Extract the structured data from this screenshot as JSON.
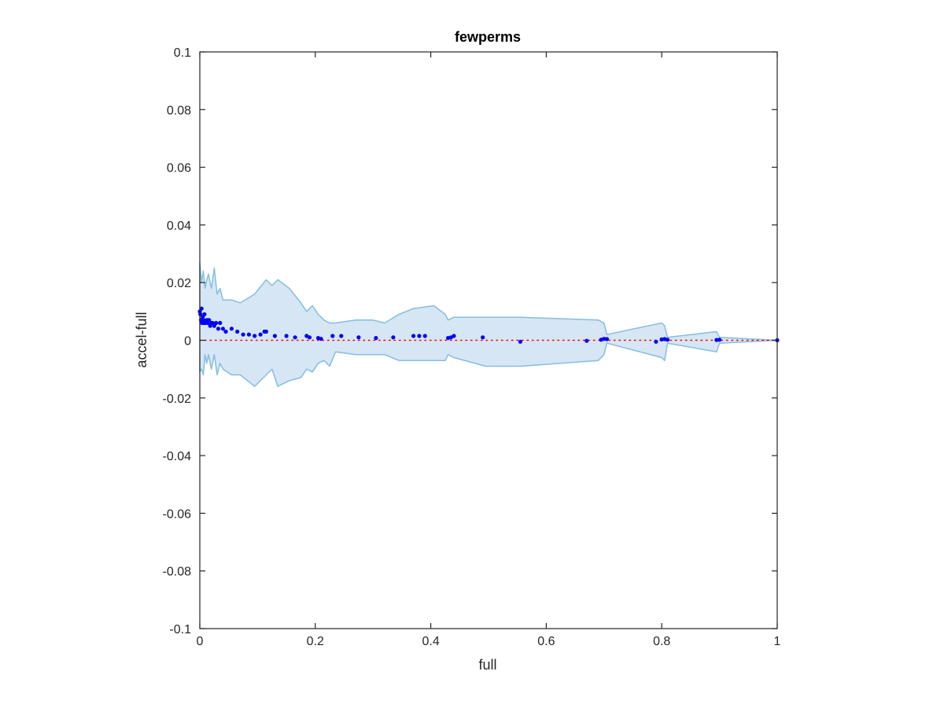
{
  "chart_data": {
    "type": "scatter",
    "title": "fewperms",
    "xlabel": "full",
    "ylabel": "accel-full",
    "xlim": [
      0,
      1
    ],
    "ylim": [
      -0.1,
      0.1
    ],
    "xticks": [
      0,
      0.2,
      0.4,
      0.6,
      0.8,
      1
    ],
    "xtick_labels": [
      "0",
      "0.2",
      "0.4",
      "0.6",
      "0.8",
      "1"
    ],
    "yticks": [
      -0.1,
      -0.08,
      -0.06,
      -0.04,
      -0.02,
      0,
      0.02,
      0.04,
      0.06,
      0.08,
      0.1
    ],
    "ytick_labels": [
      "-0.1",
      "-0.08",
      "-0.06",
      "-0.04",
      "-0.02",
      "0",
      "0.02",
      "0.04",
      "0.06",
      "0.08",
      "0.1"
    ],
    "grid": false,
    "box": true,
    "colors": {
      "points": "#0000ff",
      "band_fill": "#d6e6f4",
      "band_edge": "#86bde0",
      "zero_line": "#ff0000",
      "axes": "#262626"
    },
    "band": {
      "x": [
        0.0,
        0.003,
        0.006,
        0.009,
        0.012,
        0.015,
        0.02,
        0.025,
        0.03,
        0.035,
        0.04,
        0.055,
        0.07,
        0.095,
        0.115,
        0.125,
        0.135,
        0.155,
        0.175,
        0.185,
        0.195,
        0.205,
        0.215,
        0.225,
        0.235,
        0.27,
        0.3,
        0.32,
        0.345,
        0.37,
        0.405,
        0.425,
        0.43,
        0.44,
        0.495,
        0.555,
        0.69,
        0.7,
        0.705,
        0.8,
        0.805,
        0.81,
        0.895,
        0.9,
        1.0
      ],
      "upper": [
        0.027,
        0.02,
        0.024,
        0.018,
        0.021,
        0.023,
        0.018,
        0.025,
        0.016,
        0.018,
        0.014,
        0.014,
        0.013,
        0.016,
        0.021,
        0.019,
        0.021,
        0.018,
        0.013,
        0.01,
        0.012,
        0.009,
        0.007,
        0.006,
        0.006,
        0.007,
        0.007,
        0.006,
        0.009,
        0.011,
        0.012,
        0.009,
        0.007,
        0.008,
        0.008,
        0.008,
        0.007,
        0.006,
        0.002,
        0.006,
        0.005,
        0.001,
        0.003,
        0.001,
        0.0
      ],
      "lower": [
        -0.011,
        -0.01,
        -0.012,
        -0.005,
        -0.008,
        -0.005,
        -0.01,
        -0.005,
        -0.012,
        -0.008,
        -0.01,
        -0.012,
        -0.012,
        -0.016,
        -0.012,
        -0.01,
        -0.016,
        -0.014,
        -0.013,
        -0.01,
        -0.011,
        -0.008,
        -0.007,
        -0.009,
        -0.004,
        -0.005,
        -0.005,
        -0.005,
        -0.007,
        -0.007,
        -0.007,
        -0.007,
        -0.005,
        -0.006,
        -0.009,
        -0.009,
        -0.007,
        -0.005,
        -0.001,
        -0.006,
        -0.007,
        -0.001,
        -0.004,
        -0.001,
        0.0
      ]
    },
    "points": {
      "x": [
        0.0,
        0.001,
        0.002,
        0.003,
        0.004,
        0.005,
        0.006,
        0.007,
        0.008,
        0.01,
        0.012,
        0.014,
        0.016,
        0.018,
        0.02,
        0.022,
        0.025,
        0.028,
        0.032,
        0.035,
        0.04,
        0.045,
        0.055,
        0.065,
        0.075,
        0.085,
        0.095,
        0.105,
        0.112,
        0.115,
        0.13,
        0.15,
        0.165,
        0.185,
        0.19,
        0.205,
        0.21,
        0.23,
        0.245,
        0.275,
        0.305,
        0.335,
        0.37,
        0.38,
        0.39,
        0.43,
        0.435,
        0.44,
        0.49,
        0.555,
        0.67,
        0.695,
        0.7,
        0.705,
        0.79,
        0.8,
        0.805,
        0.81,
        0.895,
        0.9,
        1.0
      ],
      "y": [
        0.01,
        0.009,
        0.007,
        0.011,
        0.006,
        0.008,
        0.007,
        0.006,
        0.009,
        0.006,
        0.007,
        0.006,
        0.007,
        0.005,
        0.006,
        0.006,
        0.005,
        0.006,
        0.004,
        0.006,
        0.004,
        0.003,
        0.004,
        0.003,
        0.002,
        0.002,
        0.0015,
        0.002,
        0.003,
        0.003,
        0.0015,
        0.0015,
        0.001,
        0.0015,
        0.001,
        0.0008,
        0.0005,
        0.0015,
        0.0015,
        0.001,
        0.0008,
        0.001,
        0.0015,
        0.0015,
        0.0015,
        0.0008,
        0.001,
        0.0015,
        0.001,
        -0.0005,
        -0.0002,
        0.0002,
        0.0005,
        0.0004,
        -0.0005,
        0.0003,
        0.0004,
        0.0002,
        0.0001,
        0.0002,
        0.0
      ]
    },
    "zero_line_y": 0
  }
}
